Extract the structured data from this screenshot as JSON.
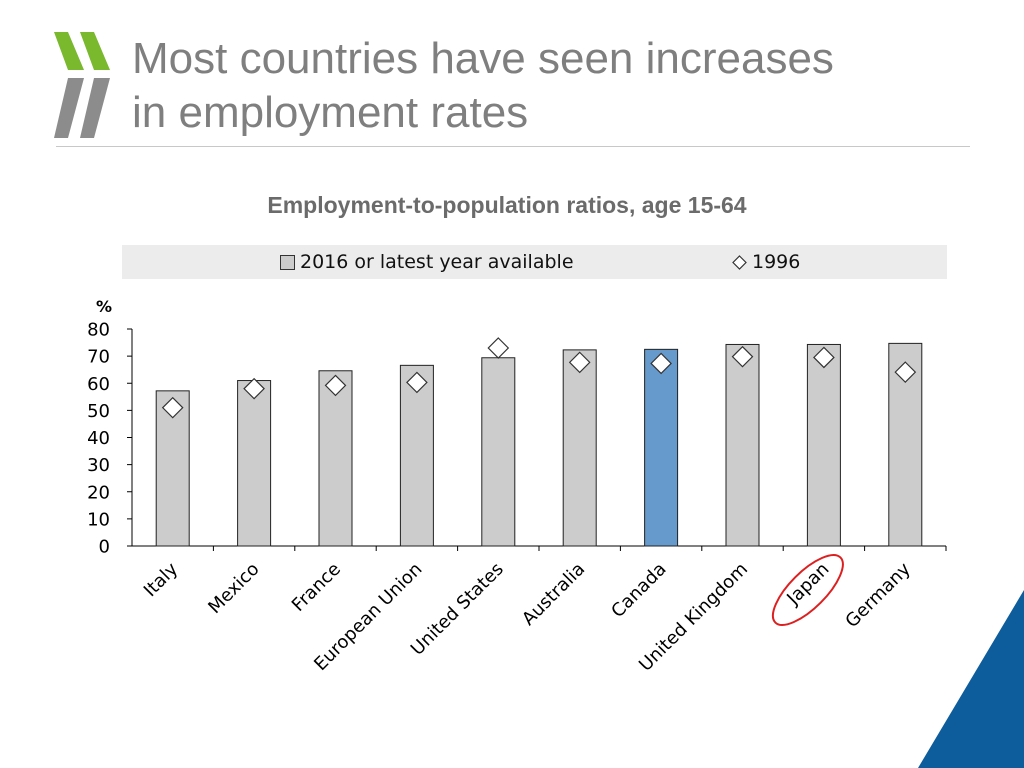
{
  "slide": {
    "title_lines": [
      "Most countries have seen increases",
      "in employment rates"
    ]
  },
  "colors": {
    "brand_green": "#7ab82e",
    "brand_grey": "#8c8c8c",
    "bar_default": "#cccccc",
    "bar_highlight": "#6699cc",
    "corner_blue": "#0d5c9b",
    "circle_red": "#dd1f1f"
  },
  "chart_data": {
    "type": "bar",
    "title": "Employment-to-population ratios, age 15-64",
    "ylabel": "%",
    "ylim": [
      0,
      80
    ],
    "yticks": [
      "0",
      "10",
      "20",
      "30",
      "40",
      "50",
      "60",
      "70",
      "80"
    ],
    "categories": [
      "Italy",
      "Mexico",
      "France",
      "European Union",
      "United States",
      "Australia",
      "Canada",
      "United Kingdom",
      "Japan",
      "Germany"
    ],
    "series": [
      {
        "name": "2016 or latest year available",
        "type": "bar",
        "values": [
          57.2,
          61.0,
          64.6,
          66.6,
          69.4,
          72.3,
          72.5,
          74.3,
          74.3,
          74.7
        ]
      },
      {
        "name": "1996",
        "type": "scatter",
        "marker": "diamond",
        "values": [
          51.0,
          58.0,
          59.2,
          60.3,
          73.0,
          67.7,
          67.3,
          69.8,
          69.5,
          64.1
        ]
      }
    ],
    "highlight_bar": "Canada",
    "circled_label": "Japan",
    "legend_position": "top",
    "grid": false
  }
}
